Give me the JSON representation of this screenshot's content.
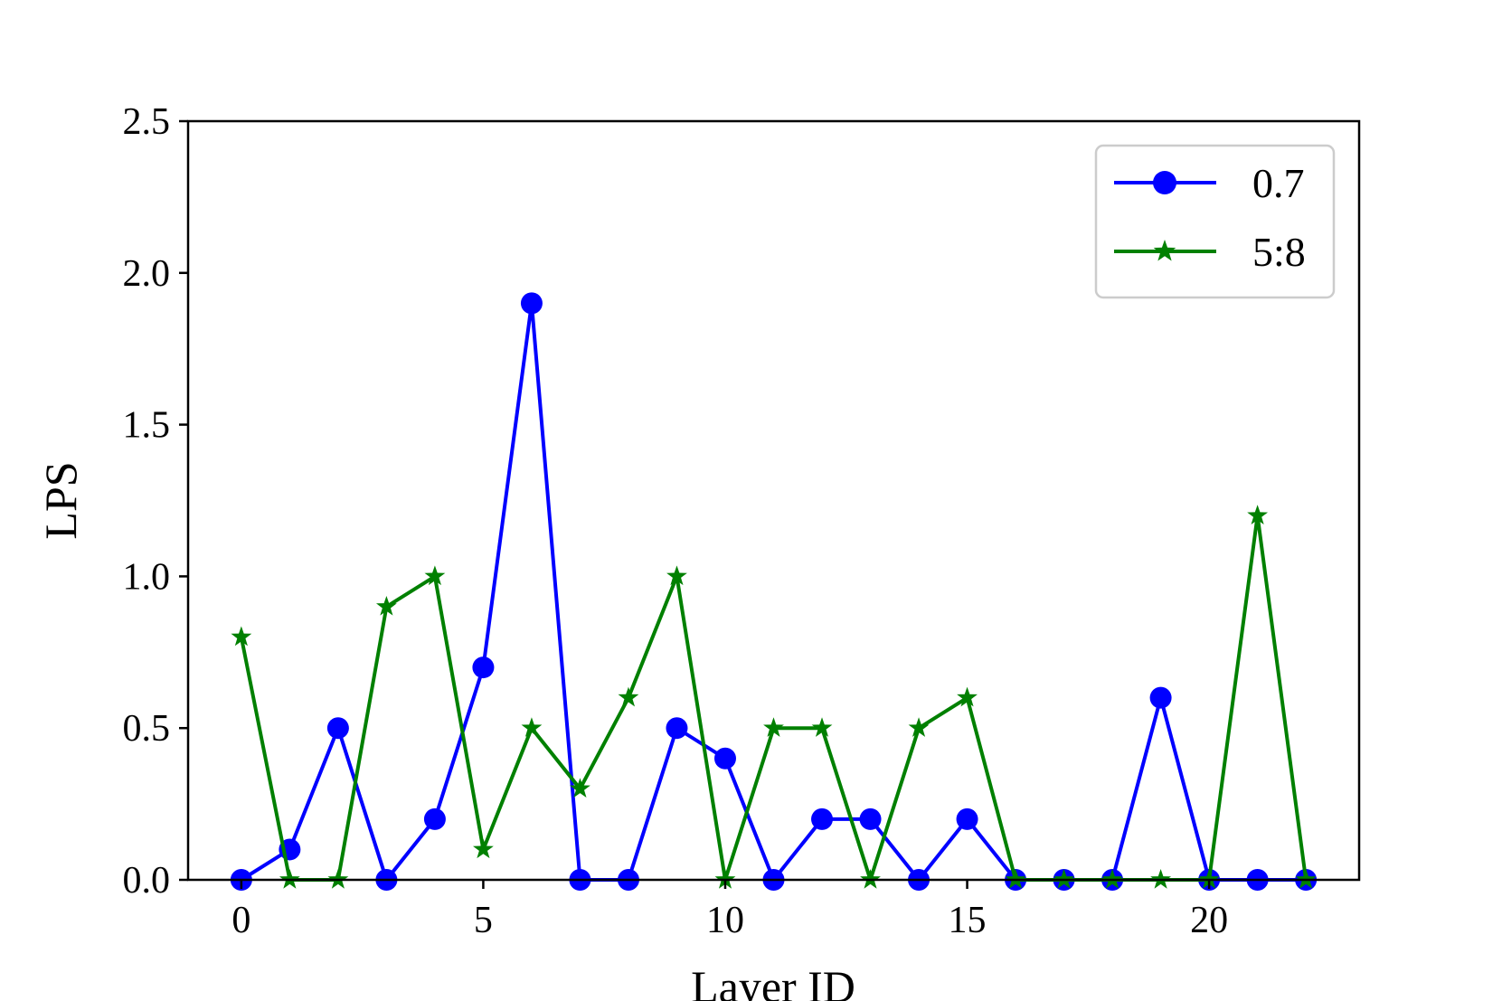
{
  "chart_data": {
    "type": "line",
    "title": "",
    "xlabel": "Layer ID",
    "ylabel": "LPS",
    "xlim": [
      -1.1,
      23.1
    ],
    "ylim": [
      0,
      2.5
    ],
    "xticks": [
      0,
      5,
      10,
      15,
      20
    ],
    "xtick_labels": [
      "0",
      "5",
      "10",
      "15",
      "20"
    ],
    "yticks": [
      0,
      0.5,
      1.0,
      1.5,
      2.0,
      2.5
    ],
    "ytick_labels": [
      "0.0",
      "0.5",
      "1.0",
      "1.5",
      "2.0",
      "2.5"
    ],
    "grid": false,
    "legend_position": "top-right",
    "x": [
      0,
      1,
      2,
      3,
      4,
      5,
      6,
      7,
      8,
      9,
      10,
      11,
      12,
      13,
      14,
      15,
      16,
      17,
      18,
      19,
      20,
      21,
      22
    ],
    "series": [
      {
        "name": "0.7",
        "color": "#0000ff",
        "marker": "circle",
        "values": [
          0,
          0.1,
          0.5,
          0,
          0.2,
          0.7,
          1.9,
          0,
          0,
          0.5,
          0.4,
          0,
          0.2,
          0.2,
          0,
          0.2,
          0,
          0,
          0,
          0.6,
          0,
          0,
          0
        ]
      },
      {
        "name": "5:8",
        "color": "#008000",
        "marker": "star",
        "values": [
          0.8,
          0,
          0,
          0.9,
          1.0,
          0.1,
          0.5,
          0.3,
          0.6,
          1.0,
          0,
          0.5,
          0.5,
          0,
          0.5,
          0.6,
          0,
          0,
          0,
          0,
          0,
          1.2,
          0
        ]
      }
    ]
  }
}
